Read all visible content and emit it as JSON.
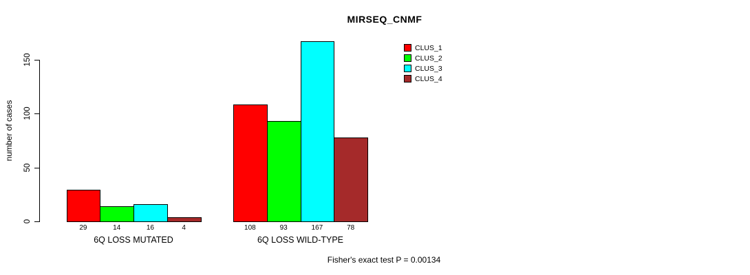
{
  "chart_data": {
    "type": "bar",
    "title": "MIRSEQ_CNMF",
    "ylabel": "number of cases",
    "xlabel": "",
    "categories": [
      "6Q LOSS MUTATED",
      "6Q LOSS WILD-TYPE"
    ],
    "series": [
      {
        "name": "CLUS_1",
        "color": "#FF0000",
        "values": [
          29,
          108
        ]
      },
      {
        "name": "CLUS_2",
        "color": "#00FF00",
        "values": [
          14,
          93
        ]
      },
      {
        "name": "CLUS_3",
        "color": "#00FFFF",
        "values": [
          16,
          167
        ]
      },
      {
        "name": "CLUS_4",
        "color": "#A52A2A",
        "values": [
          4,
          78
        ]
      }
    ],
    "yticks": [
      0,
      50,
      100,
      150
    ],
    "ylim": [
      0,
      167
    ],
    "bar_value_labels": true,
    "grid": false,
    "legend_position": "top-right",
    "annotation": "Fisher's exact test P = 0.00134"
  }
}
